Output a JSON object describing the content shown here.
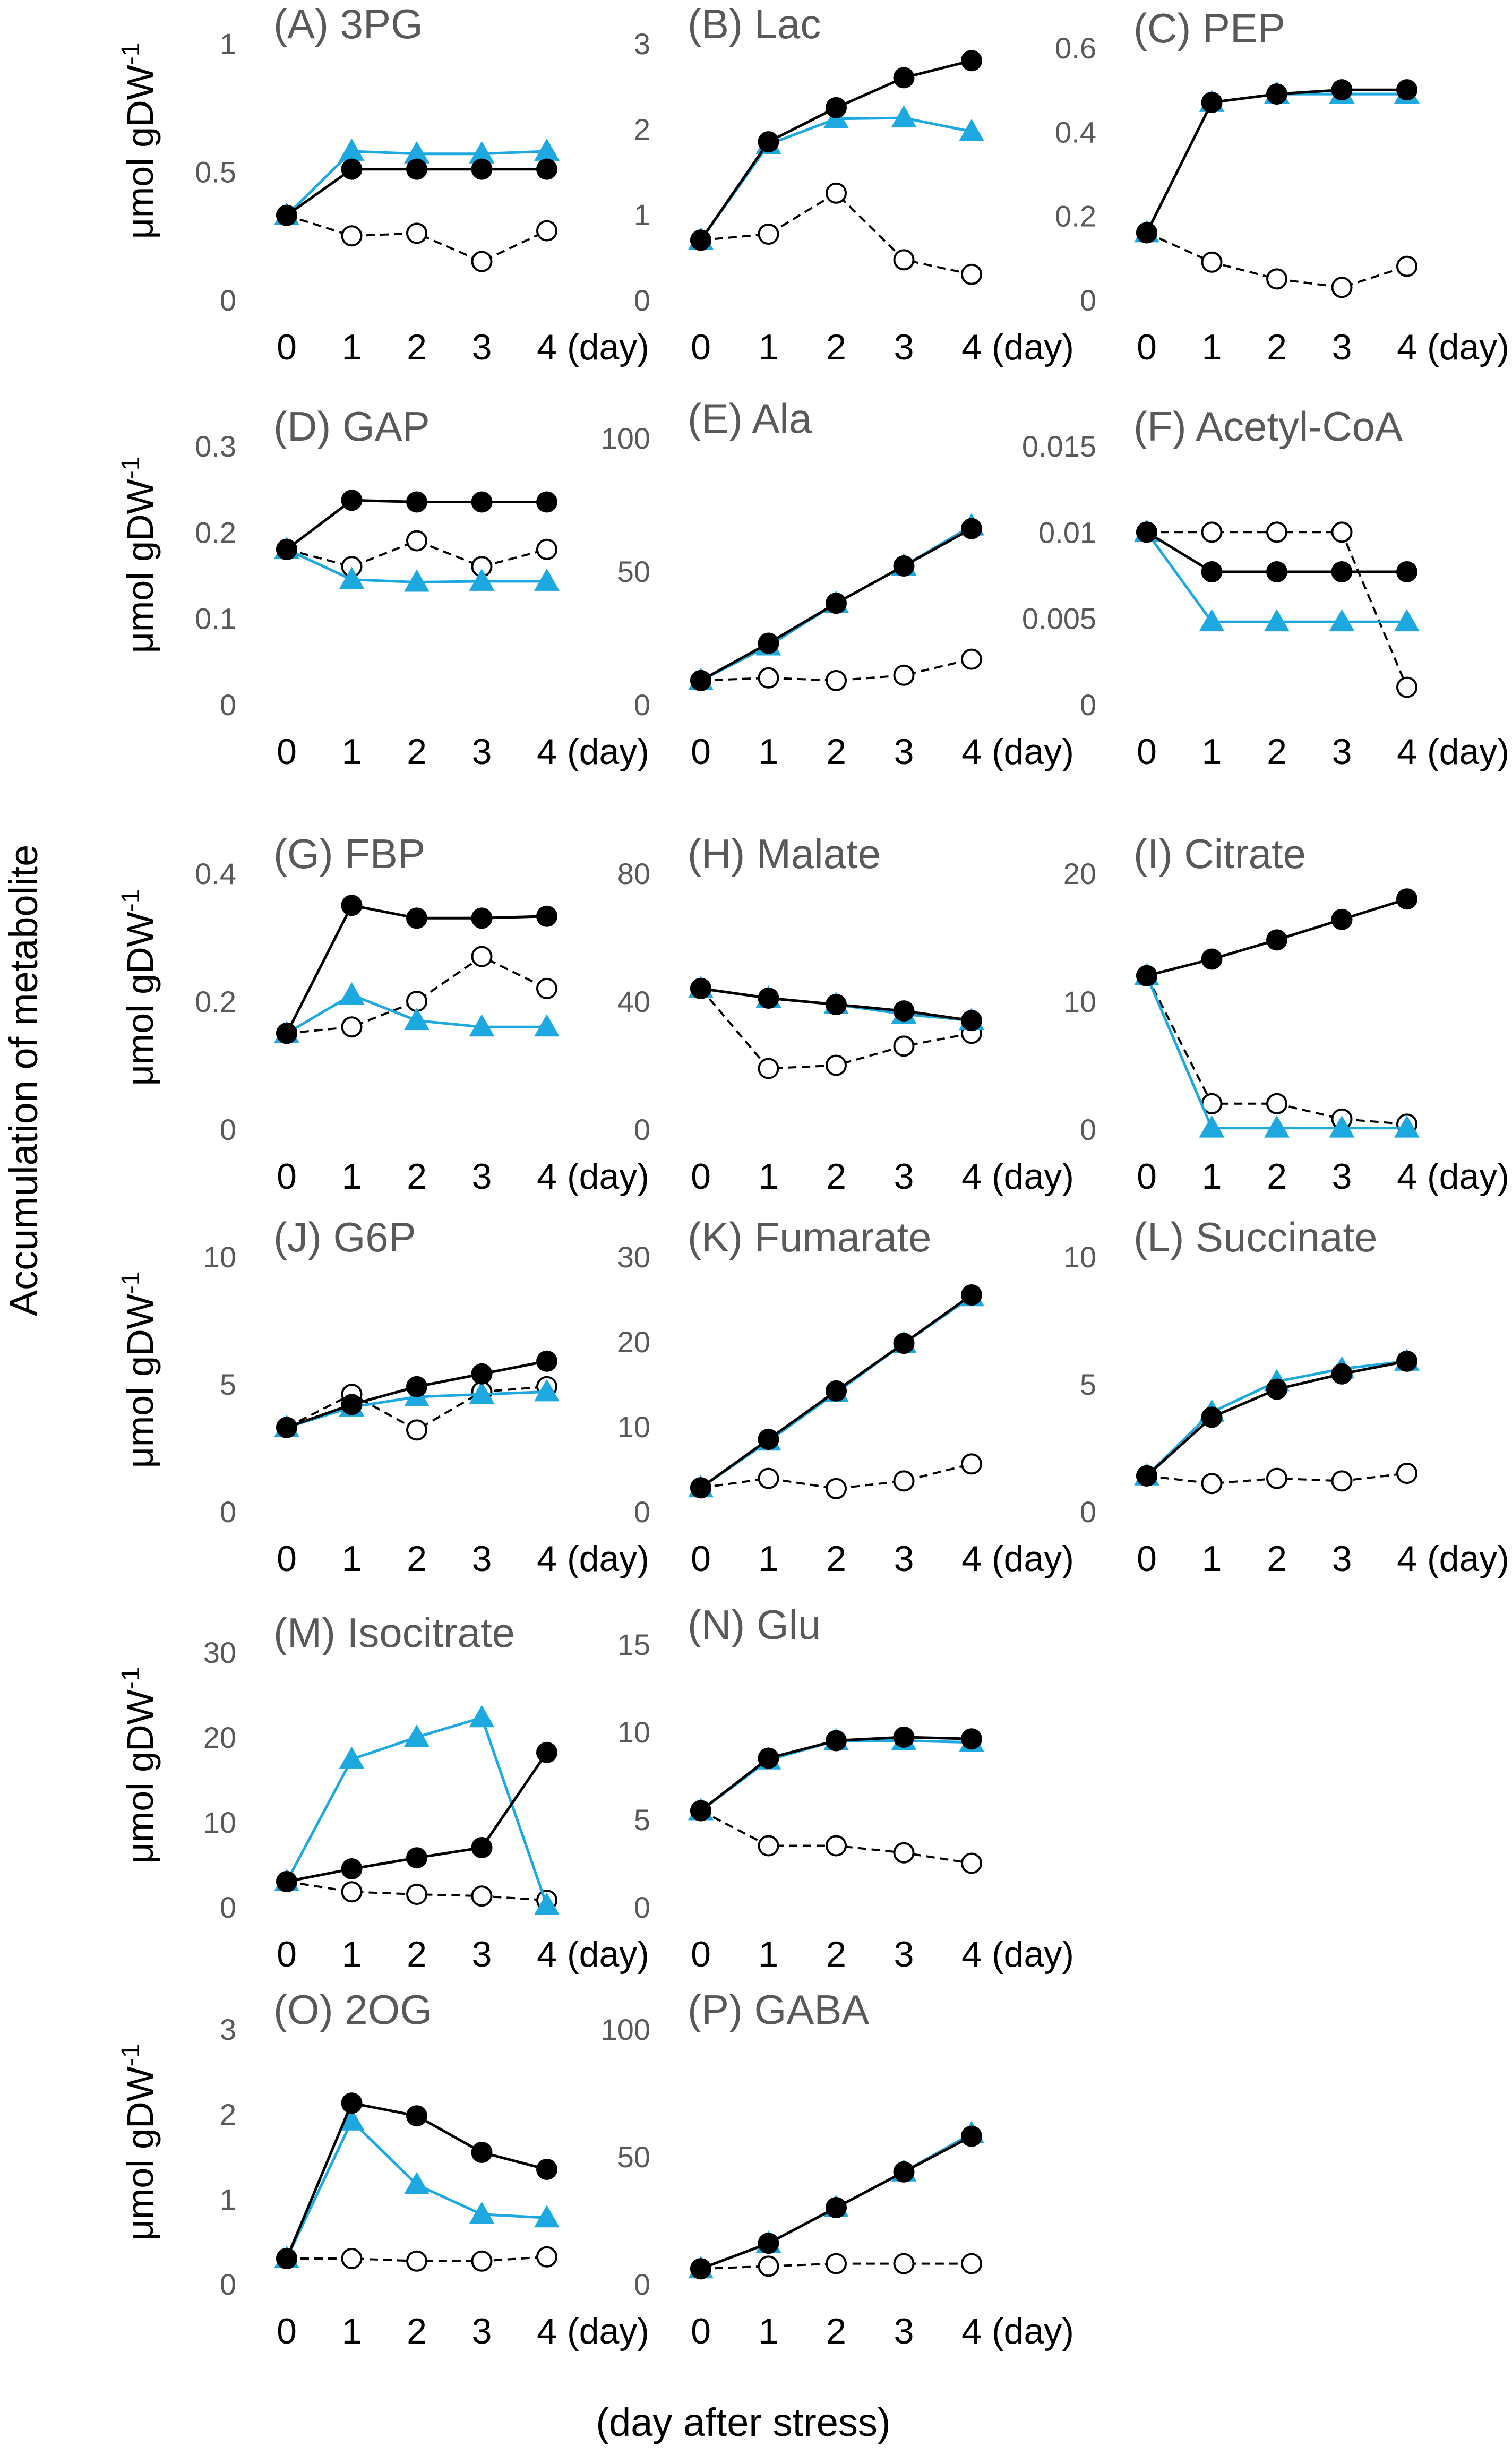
{
  "figure": {
    "left_label": "Accumulation of metabolite",
    "bottom_label": "(day after stress)",
    "row_ylabel": "μmol gDW",
    "row_ylabel_sup": "-1"
  },
  "chart_data": [
    {
      "type": "line",
      "title": "(A) 3PG",
      "categories": [
        "0",
        "1",
        "2",
        "3",
        "4"
      ],
      "x_unit": "(day)",
      "yticks": [
        "0",
        "0.5",
        "1"
      ],
      "ylim": [
        0,
        1
      ],
      "series": [
        {
          "name": "filled-circle",
          "style": "solid-black",
          "values": [
            0.33,
            0.51,
            0.51,
            0.51,
            0.51
          ]
        },
        {
          "name": "triangle",
          "style": "blue",
          "values": [
            0.33,
            0.58,
            0.57,
            0.57,
            0.58
          ]
        },
        {
          "name": "open-circle",
          "style": "dashed",
          "values": [
            0.33,
            0.25,
            0.26,
            0.15,
            0.27
          ]
        }
      ]
    },
    {
      "type": "line",
      "title": "(B) Lac",
      "categories": [
        "0",
        "1",
        "2",
        "3",
        "4"
      ],
      "x_unit": "(day)",
      "yticks": [
        "0",
        "1",
        "2",
        "3"
      ],
      "ylim": [
        0,
        3
      ],
      "series": [
        {
          "name": "filled-circle",
          "style": "solid-black",
          "values": [
            0.7,
            1.85,
            2.25,
            2.6,
            2.8
          ]
        },
        {
          "name": "triangle",
          "style": "blue",
          "values": [
            0.7,
            1.82,
            2.12,
            2.13,
            1.97
          ]
        },
        {
          "name": "open-circle",
          "style": "dashed",
          "values": [
            0.7,
            0.77,
            1.25,
            0.47,
            0.3
          ]
        }
      ]
    },
    {
      "type": "line",
      "title": "(C) PEP",
      "categories": [
        "0",
        "1",
        "2",
        "3",
        "4"
      ],
      "x_unit": "(day)",
      "yticks": [
        "0",
        "0.2",
        "0.4",
        "0.6"
      ],
      "ylim": [
        0,
        0.6
      ],
      "series": [
        {
          "name": "filled-circle",
          "style": "solid-black",
          "values": [
            0.16,
            0.47,
            0.49,
            0.5,
            0.5
          ]
        },
        {
          "name": "triangle",
          "style": "blue",
          "values": [
            0.16,
            0.47,
            0.49,
            0.49,
            0.49
          ]
        },
        {
          "name": "open-circle",
          "style": "dashed",
          "values": [
            0.16,
            0.09,
            0.05,
            0.03,
            0.08
          ]
        }
      ]
    },
    {
      "type": "line",
      "title": "(D) GAP",
      "categories": [
        "0",
        "1",
        "2",
        "3",
        "4"
      ],
      "x_unit": "(day)",
      "yticks": [
        "0",
        "0.1",
        "0.2",
        "0.3"
      ],
      "ylim": [
        0,
        0.3
      ],
      "series": [
        {
          "name": "filled-circle",
          "style": "solid-black",
          "values": [
            0.18,
            0.237,
            0.235,
            0.235,
            0.235
          ]
        },
        {
          "name": "triangle",
          "style": "blue",
          "values": [
            0.18,
            0.145,
            0.142,
            0.143,
            0.143
          ]
        },
        {
          "name": "open-circle",
          "style": "dashed",
          "values": [
            0.18,
            0.16,
            0.19,
            0.16,
            0.18
          ]
        }
      ]
    },
    {
      "type": "line",
      "title": "(E) Ala",
      "categories": [
        "0",
        "1",
        "2",
        "3",
        "4"
      ],
      "x_unit": "(day)",
      "yticks": [
        "0",
        "50",
        "100"
      ],
      "ylim": [
        0,
        100
      ],
      "series": [
        {
          "name": "filled-circle",
          "style": "solid-black",
          "values": [
            9,
            23,
            38,
            52,
            66
          ]
        },
        {
          "name": "triangle",
          "style": "blue",
          "values": [
            9,
            22,
            38,
            52,
            67
          ]
        },
        {
          "name": "open-circle",
          "style": "dashed",
          "values": [
            9,
            10,
            9,
            11,
            17
          ]
        }
      ]
    },
    {
      "type": "line",
      "title": "(F) Acetyl-CoA",
      "categories": [
        "0",
        "1",
        "2",
        "3",
        "4"
      ],
      "x_unit": "(day)",
      "yticks": [
        "0",
        "0.005",
        "0.01",
        "0.015"
      ],
      "ylim": [
        0,
        0.015
      ],
      "series": [
        {
          "name": "filled-circle",
          "style": "solid-black",
          "values": [
            0.01,
            0.0077,
            0.0077,
            0.0077,
            0.0077
          ]
        },
        {
          "name": "triangle",
          "style": "blue",
          "values": [
            0.01,
            0.0048,
            0.0048,
            0.0048,
            0.0048
          ]
        },
        {
          "name": "open-circle",
          "style": "dashed",
          "values": [
            0.01,
            0.01,
            0.01,
            0.01,
            0.001
          ]
        }
      ]
    },
    {
      "type": "line",
      "title": "(G) FBP",
      "categories": [
        "0",
        "1",
        "2",
        "3",
        "4"
      ],
      "x_unit": "(day)",
      "yticks": [
        "0",
        "0.2",
        "0.4"
      ],
      "ylim": [
        0,
        0.4
      ],
      "series": [
        {
          "name": "filled-circle",
          "style": "solid-black",
          "values": [
            0.15,
            0.35,
            0.33,
            0.33,
            0.333
          ]
        },
        {
          "name": "triangle",
          "style": "blue",
          "values": [
            0.15,
            0.21,
            0.17,
            0.16,
            0.16
          ]
        },
        {
          "name": "open-circle",
          "style": "dashed",
          "values": [
            0.15,
            0.16,
            0.2,
            0.27,
            0.22
          ]
        }
      ]
    },
    {
      "type": "line",
      "title": "(H) Malate",
      "categories": [
        "0",
        "1",
        "2",
        "3",
        "4"
      ],
      "x_unit": "(day)",
      "yticks": [
        "0",
        "40",
        "80"
      ],
      "ylim": [
        0,
        80
      ],
      "series": [
        {
          "name": "filled-circle",
          "style": "solid-black",
          "values": [
            44,
            41,
            39,
            37,
            34
          ]
        },
        {
          "name": "triangle",
          "style": "blue",
          "values": [
            44,
            41,
            39,
            36,
            34
          ]
        },
        {
          "name": "open-circle",
          "style": "dashed",
          "values": [
            44,
            19,
            20,
            26,
            30
          ]
        }
      ]
    },
    {
      "type": "line",
      "title": "(I) Citrate",
      "categories": [
        "0",
        "1",
        "2",
        "3",
        "4"
      ],
      "x_unit": "(day)",
      "yticks": [
        "0",
        "10",
        "20"
      ],
      "ylim": [
        0,
        20
      ],
      "series": [
        {
          "name": "filled-circle",
          "style": "solid-black",
          "values": [
            12,
            13.3,
            14.8,
            16.4,
            18
          ]
        },
        {
          "name": "triangle",
          "style": "blue",
          "values": [
            12,
            0.1,
            0.1,
            0.1,
            0.1
          ]
        },
        {
          "name": "open-circle",
          "style": "dashed",
          "values": [
            12,
            2,
            2,
            0.8,
            0.4
          ]
        }
      ]
    },
    {
      "type": "line",
      "title": "(J) G6P",
      "categories": [
        "0",
        "1",
        "2",
        "3",
        "4"
      ],
      "x_unit": "(day)",
      "yticks": [
        "0",
        "5",
        "10"
      ],
      "ylim": [
        0,
        10
      ],
      "series": [
        {
          "name": "filled-circle",
          "style": "solid-black",
          "values": [
            3.3,
            4.2,
            4.9,
            5.4,
            5.9
          ]
        },
        {
          "name": "triangle",
          "style": "blue",
          "values": [
            3.3,
            4.1,
            4.5,
            4.6,
            4.7
          ]
        },
        {
          "name": "open-circle",
          "style": "dashed",
          "values": [
            3.3,
            4.6,
            3.2,
            4.7,
            4.9
          ]
        }
      ]
    },
    {
      "type": "line",
      "title": "(K) Fumarate",
      "categories": [
        "0",
        "1",
        "2",
        "3",
        "4"
      ],
      "x_unit": "(day)",
      "yticks": [
        "0",
        "10",
        "20",
        "30"
      ],
      "ylim": [
        0,
        30
      ],
      "series": [
        {
          "name": "filled-circle",
          "style": "solid-black",
          "values": [
            2.8,
            8.5,
            14.2,
            19.8,
            25.5
          ]
        },
        {
          "name": "triangle",
          "style": "blue",
          "values": [
            2.8,
            8.3,
            14,
            19.8,
            25.3
          ]
        },
        {
          "name": "open-circle",
          "style": "dashed",
          "values": [
            2.8,
            3.9,
            2.7,
            3.6,
            5.6
          ]
        }
      ]
    },
    {
      "type": "line",
      "title": "(L) Succinate",
      "categories": [
        "0",
        "1",
        "2",
        "3",
        "4"
      ],
      "x_unit": "(day)",
      "yticks": [
        "0",
        "5",
        "10"
      ],
      "ylim": [
        0,
        10
      ],
      "series": [
        {
          "name": "filled-circle",
          "style": "solid-black",
          "values": [
            1.4,
            3.7,
            4.8,
            5.4,
            5.9
          ]
        },
        {
          "name": "triangle",
          "style": "blue",
          "values": [
            1.4,
            3.9,
            5.1,
            5.6,
            5.9
          ]
        },
        {
          "name": "open-circle",
          "style": "dashed",
          "values": [
            1.4,
            1.1,
            1.3,
            1.2,
            1.5
          ]
        }
      ]
    },
    {
      "type": "line",
      "title": "(M) Isocitrate",
      "categories": [
        "0",
        "1",
        "2",
        "3",
        "4"
      ],
      "x_unit": "(day)",
      "yticks": [
        "0",
        "10",
        "20",
        "30"
      ],
      "ylim": [
        0,
        30
      ],
      "series": [
        {
          "name": "filled-circle",
          "style": "solid-black",
          "values": [
            3,
            4.5,
            5.8,
            7,
            18.2
          ]
        },
        {
          "name": "triangle",
          "style": "blue",
          "values": [
            3,
            17.4,
            20,
            22.3,
            0.2
          ]
        },
        {
          "name": "open-circle",
          "style": "dashed",
          "values": [
            3,
            1.8,
            1.5,
            1.3,
            0.8
          ]
        }
      ]
    },
    {
      "type": "line",
      "title": "(N) Glu",
      "categories": [
        "0",
        "1",
        "2",
        "3",
        "4"
      ],
      "x_unit": "(day)",
      "yticks": [
        "0",
        "5",
        "10",
        "15"
      ],
      "ylim": [
        0,
        15
      ],
      "series": [
        {
          "name": "filled-circle",
          "style": "solid-black",
          "values": [
            5.5,
            8.5,
            9.5,
            9.7,
            9.6
          ]
        },
        {
          "name": "triangle",
          "style": "blue",
          "values": [
            5.5,
            8.4,
            9.5,
            9.5,
            9.4
          ]
        },
        {
          "name": "open-circle",
          "style": "dashed",
          "values": [
            5.5,
            3.5,
            3.5,
            3.1,
            2.5
          ]
        }
      ]
    },
    {
      "type": "line",
      "title": "(O) 2OG",
      "categories": [
        "0",
        "1",
        "2",
        "3",
        "4"
      ],
      "x_unit": "(day)",
      "yticks": [
        "0",
        "1",
        "2",
        "3"
      ],
      "ylim": [
        0,
        3
      ],
      "series": [
        {
          "name": "filled-circle",
          "style": "solid-black",
          "values": [
            0.3,
            2.13,
            1.98,
            1.55,
            1.35
          ]
        },
        {
          "name": "triangle",
          "style": "blue",
          "values": [
            0.3,
            1.92,
            1.17,
            0.82,
            0.78
          ]
        },
        {
          "name": "open-circle",
          "style": "dashed",
          "values": [
            0.3,
            0.3,
            0.27,
            0.27,
            0.32
          ]
        }
      ]
    },
    {
      "type": "line",
      "title": "(P) GABA",
      "categories": [
        "0",
        "1",
        "2",
        "3",
        "4"
      ],
      "x_unit": "(day)",
      "yticks": [
        "0",
        "50",
        "100"
      ],
      "ylim": [
        0,
        100
      ],
      "series": [
        {
          "name": "filled-circle",
          "style": "solid-black",
          "values": [
            6,
            16,
            30,
            44,
            58
          ]
        },
        {
          "name": "triangle",
          "style": "blue",
          "values": [
            6,
            16,
            30,
            44,
            59
          ]
        },
        {
          "name": "open-circle",
          "style": "dashed",
          "values": [
            6,
            7,
            8,
            8,
            8
          ]
        }
      ]
    }
  ]
}
